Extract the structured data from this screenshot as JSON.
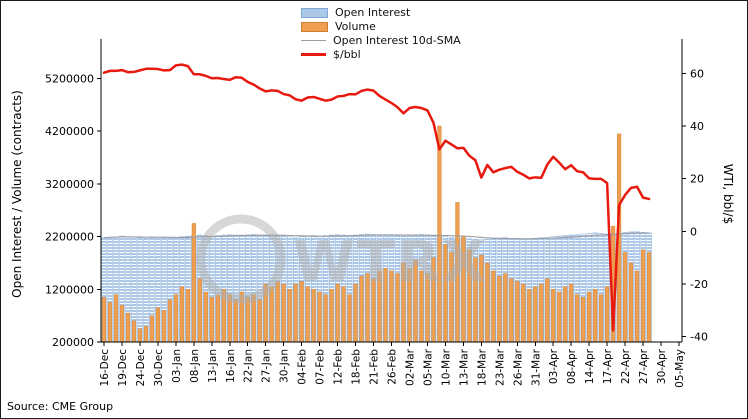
{
  "source_label": "Source: CME Group",
  "watermark": {
    "text": "WTRX"
  },
  "chart_data": {
    "type": "combo-bar-line",
    "title": "",
    "ylabel_left": "Open Interest / Volume (contracts)",
    "ylabel_right": "WTI, bbl/$",
    "left_axis": {
      "domain": [
        200000,
        5950000
      ],
      "ticks": [
        5200000,
        4200000,
        3200000,
        2200000,
        1200000,
        200000
      ]
    },
    "right_axis": {
      "domain": [
        -42,
        73
      ],
      "ticks": [
        60,
        40,
        20,
        0,
        -20,
        -40
      ]
    },
    "x_slots": 97,
    "x_tick_every": 3,
    "x_tick_labels": [
      "16-Dec",
      "19-Dec",
      "24-Dec",
      "30-Dec",
      "03-Jan",
      "08-Jan",
      "13-Jan",
      "16-Jan",
      "22-Jan",
      "27-Jan",
      "30-Jan",
      "04-Feb",
      "07-Feb",
      "12-Feb",
      "18-Feb",
      "21-Feb",
      "26-Feb",
      "02-Mar",
      "05-Mar",
      "10-Mar",
      "13-Mar",
      "18-Mar",
      "23-Mar",
      "26-Mar",
      "31-Mar",
      "03-Apr",
      "08-Apr",
      "14-Apr",
      "17-Apr",
      "22-Apr",
      "27-Apr",
      "30-Apr",
      "05-May"
    ],
    "legend": [
      {
        "label": "Open Interest",
        "swatch": "bar",
        "color": "#abc8e8",
        "edge": "#7fa8d4"
      },
      {
        "label": "Volume",
        "swatch": "bar",
        "color": "#ee9f50",
        "edge": "#cf7f35"
      },
      {
        "label": "Open Interest 10d-SMA",
        "swatch": "line",
        "color": "#9b9ba3",
        "weight": 1.5
      },
      {
        "label": "$/bbl",
        "swatch": "line",
        "color": "#e8190f",
        "weight": 3
      }
    ],
    "sma_window": 10,
    "colors": {
      "open_interest": "#abc8e8",
      "open_interest_edge": "#7fa8d4",
      "volume": "#ee9f50",
      "volume_edge": "#cf7f35",
      "sma": "#9b9ba3",
      "price": "#e8190f",
      "axis": "#000000",
      "watermark": "#b0b0b0"
    },
    "dates": [
      "16-Dec",
      "17-Dec",
      "18-Dec",
      "19-Dec",
      "20-Dec",
      "23-Dec",
      "24-Dec",
      "26-Dec",
      "27-Dec",
      "30-Dec",
      "31-Dec",
      "02-Jan",
      "03-Jan",
      "06-Jan",
      "07-Jan",
      "08-Jan",
      "09-Jan",
      "10-Jan",
      "13-Jan",
      "14-Jan",
      "15-Jan",
      "16-Jan",
      "17-Jan",
      "21-Jan",
      "22-Jan",
      "23-Jan",
      "24-Jan",
      "27-Jan",
      "28-Jan",
      "29-Jan",
      "30-Jan",
      "31-Jan",
      "03-Feb",
      "04-Feb",
      "05-Feb",
      "06-Feb",
      "07-Feb",
      "10-Feb",
      "11-Feb",
      "12-Feb",
      "13-Feb",
      "14-Feb",
      "18-Feb",
      "19-Feb",
      "20-Feb",
      "21-Feb",
      "24-Feb",
      "25-Feb",
      "26-Feb",
      "27-Feb",
      "28-Feb",
      "02-Mar",
      "03-Mar",
      "04-Mar",
      "05-Mar",
      "06-Mar",
      "09-Mar",
      "10-Mar",
      "11-Mar",
      "12-Mar",
      "13-Mar",
      "16-Mar",
      "17-Mar",
      "18-Mar",
      "19-Mar",
      "20-Mar",
      "23-Mar",
      "24-Mar",
      "25-Mar",
      "26-Mar",
      "27-Mar",
      "30-Mar",
      "31-Mar",
      "01-Apr",
      "02-Apr",
      "03-Apr",
      "06-Apr",
      "07-Apr",
      "08-Apr",
      "09-Apr",
      "13-Apr",
      "14-Apr",
      "15-Apr",
      "16-Apr",
      "17-Apr",
      "20-Apr",
      "21-Apr",
      "22-Apr",
      "23-Apr",
      "24-Apr",
      "27-Apr",
      "28-Apr"
    ],
    "series": {
      "open_interest": [
        2180000,
        2190000,
        2200000,
        2210000,
        2200000,
        2190000,
        2180000,
        2170000,
        2180000,
        2190000,
        2180000,
        2170000,
        2180000,
        2200000,
        2210000,
        2220000,
        2230000,
        2220000,
        2210000,
        2220000,
        2230000,
        2240000,
        2230000,
        2220000,
        2230000,
        2240000,
        2230000,
        2220000,
        2210000,
        2220000,
        2210000,
        2200000,
        2190000,
        2200000,
        2210000,
        2220000,
        2210000,
        2220000,
        2230000,
        2240000,
        2230000,
        2220000,
        2230000,
        2240000,
        2250000,
        2240000,
        2230000,
        2220000,
        2230000,
        2220000,
        2210000,
        2220000,
        2230000,
        2240000,
        2230000,
        2220000,
        2210000,
        2200000,
        2190000,
        2180000,
        2170000,
        2160000,
        2150000,
        2140000,
        2150000,
        2160000,
        2170000,
        2180000,
        2170000,
        2160000,
        2150000,
        2160000,
        2170000,
        2180000,
        2190000,
        2200000,
        2210000,
        2220000,
        2230000,
        2240000,
        2250000,
        2260000,
        2270000,
        2260000,
        2250000,
        2240000,
        2260000,
        2280000,
        2290000,
        2300000,
        2280000,
        2270000
      ],
      "volume": [
        1050000,
        950000,
        1100000,
        900000,
        750000,
        600000,
        450000,
        500000,
        700000,
        850000,
        800000,
        1000000,
        1100000,
        1250000,
        1200000,
        2450000,
        1400000,
        1150000,
        1050000,
        1100000,
        1200000,
        1100000,
        1000000,
        1150000,
        1050000,
        1100000,
        1000000,
        1300000,
        1250000,
        1350000,
        1300000,
        1200000,
        1300000,
        1350000,
        1250000,
        1200000,
        1150000,
        1100000,
        1200000,
        1300000,
        1250000,
        1100000,
        1300000,
        1450000,
        1500000,
        1400000,
        1550000,
        1600000,
        1550000,
        1500000,
        1700000,
        1600000,
        1750000,
        1550000,
        1500000,
        1800000,
        4300000,
        2050000,
        1900000,
        2850000,
        2200000,
        1950000,
        1800000,
        1850000,
        1700000,
        1550000,
        1450000,
        1500000,
        1400000,
        1350000,
        1300000,
        1200000,
        1250000,
        1300000,
        1400000,
        1200000,
        1150000,
        1250000,
        1300000,
        1100000,
        1050000,
        1150000,
        1200000,
        1100000,
        1250000,
        2400000,
        4150000,
        1900000,
        1700000,
        1550000,
        1950000,
        1900000
      ],
      "price_usd_bbl": [
        60.2,
        60.9,
        60.9,
        61.2,
        60.4,
        60.5,
        61.1,
        61.7,
        61.7,
        61.6,
        61.1,
        61.2,
        63.0,
        63.3,
        62.7,
        59.6,
        59.6,
        59.0,
        58.1,
        58.2,
        57.8,
        57.5,
        58.5,
        58.3,
        56.7,
        55.7,
        54.2,
        53.1,
        53.5,
        53.3,
        52.1,
        51.6,
        50.1,
        49.6,
        50.8,
        51.0,
        50.3,
        49.6,
        50.0,
        51.2,
        51.4,
        52.1,
        52.0,
        53.3,
        53.8,
        53.4,
        51.4,
        50.0,
        48.7,
        47.1,
        44.8,
        46.8,
        47.2,
        46.8,
        45.9,
        41.3,
        31.1,
        34.4,
        33.0,
        31.5,
        31.7,
        28.7,
        27.0,
        20.4,
        25.2,
        22.4,
        23.4,
        24.0,
        24.5,
        22.6,
        21.5,
        20.1,
        20.5,
        20.3,
        25.3,
        28.3,
        26.1,
        23.6,
        25.1,
        22.8,
        22.4,
        20.1,
        19.9,
        19.9,
        18.3,
        -37.6,
        10.0,
        13.8,
        16.5,
        16.9,
        12.8,
        12.3
      ]
    }
  }
}
